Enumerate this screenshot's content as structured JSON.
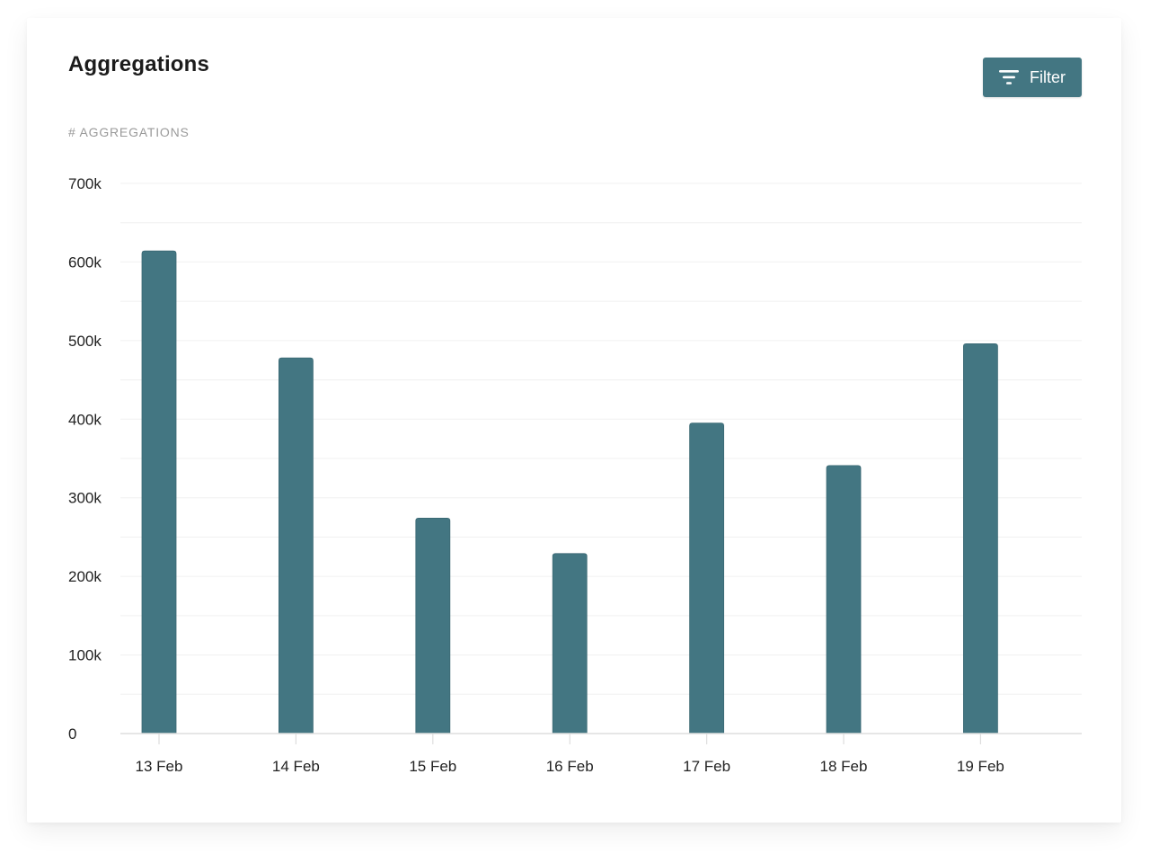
{
  "card": {
    "title": "Aggregations",
    "metric_label": "# AGGREGATIONS",
    "filter_label": "Filter"
  },
  "colors": {
    "bar": "#437682",
    "button": "#437682",
    "grid": "#f0f0f0",
    "axis": "#dddddd",
    "tick_text": "#222222"
  },
  "icons": {
    "filter": "filter-icon"
  },
  "chart_data": {
    "type": "bar",
    "categories": [
      "13 Feb",
      "14 Feb",
      "15 Feb",
      "16 Feb",
      "17 Feb",
      "18 Feb",
      "19 Feb"
    ],
    "values": [
      614000,
      478000,
      274000,
      229000,
      395000,
      341000,
      496000
    ],
    "ylim": [
      0,
      700000
    ],
    "yticks": [
      0,
      100000,
      200000,
      300000,
      400000,
      500000,
      600000,
      700000
    ],
    "ytick_labels": [
      "0",
      "100k",
      "200k",
      "300k",
      "400k",
      "500k",
      "600k",
      "700k"
    ],
    "ylabel": "# AGGREGATIONS",
    "xlabel": "",
    "grid": true,
    "legend": "none"
  }
}
